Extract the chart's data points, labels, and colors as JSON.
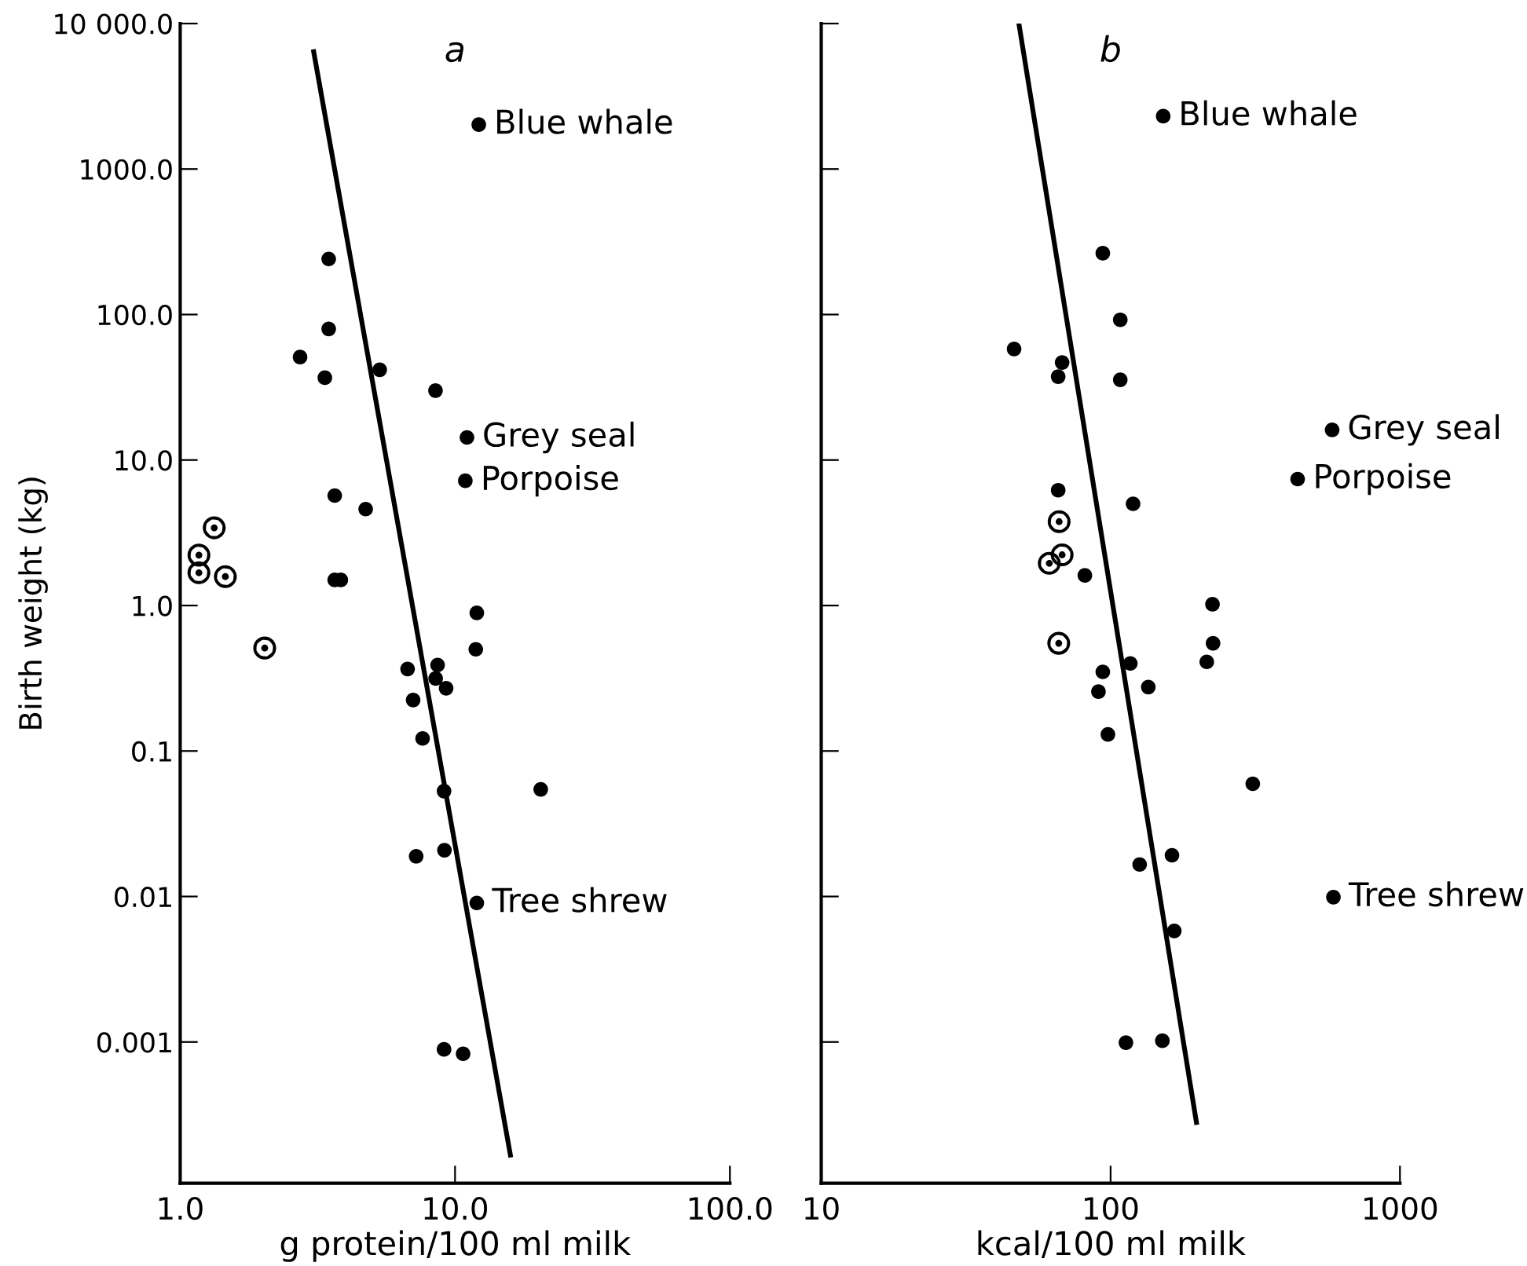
{
  "chart_data": [
    {
      "type": "scatter",
      "title": "a",
      "xlabel": "g protein/100 ml milk",
      "ylabel": "Birth weight (kg)",
      "log": "xy",
      "grid": false,
      "xlim": [
        1,
        100
      ],
      "xticks": [
        {
          "value": 1,
          "label": "1.0"
        },
        {
          "value": 10,
          "label": "10.0"
        },
        {
          "value": 100,
          "label": "100.0"
        }
      ],
      "ylim": [
        0.000107,
        10000
      ],
      "yticks": [
        {
          "value": 10000,
          "label": "10 000.0"
        },
        {
          "value": 1000,
          "label": "1000.0"
        },
        {
          "value": 100,
          "label": "100.0"
        },
        {
          "value": 10,
          "label": "10.0"
        },
        {
          "value": 1,
          "label": "1.0"
        },
        {
          "value": 0.1,
          "label": "0.1"
        },
        {
          "value": 0.01,
          "label": "0.01"
        },
        {
          "value": 0.001,
          "label": "0.001"
        }
      ],
      "series": [
        {
          "type": "scatter",
          "marker": "circle",
          "color": "#000000",
          "x": [
            12.2,
            3.47,
            3.47,
            2.73,
            3.36,
            5.32,
            8.49,
            11.05,
            10.9,
            3.65,
            4.73,
            3.65,
            3.84,
            12.0,
            11.9,
            6.72,
            8.64,
            8.5,
            9.28,
            7.04,
            7.62,
            9.12,
            20.5,
            9.15,
            7.22,
            12.0,
            9.12,
            10.7
          ],
          "values": [
            2020,
            241,
            79.6,
            51,
            36.8,
            41.7,
            30,
            14.3,
            7.2,
            5.7,
            4.6,
            1.5,
            1.5,
            0.89,
            0.5,
            0.366,
            0.39,
            0.315,
            0.27,
            0.224,
            0.122,
            0.053,
            0.0545,
            0.0208,
            0.0189,
            0.00903,
            0.00089,
            0.00083
          ]
        },
        {
          "type": "scatter",
          "marker": "dot-circle",
          "color": "#000000",
          "x": [
            1.33,
            1.17,
            1.17,
            1.46,
            2.03
          ],
          "values": [
            3.42,
            2.22,
            1.68,
            1.58,
            0.51
          ]
        },
        {
          "type": "line",
          "color": "#000000",
          "x": [
            3.06,
            15.9
          ],
          "values": [
            6400,
            0.000167
          ]
        }
      ],
      "annotations": [
        {
          "text": "Blue whale",
          "x": 12.2,
          "y": 2020
        },
        {
          "text": "Grey seal",
          "x": 11.05,
          "y": 14.3
        },
        {
          "text": "Porpoise",
          "x": 10.9,
          "y": 7.2
        },
        {
          "text": "Tree shrew",
          "x": 12.0,
          "y": 0.00903
        }
      ]
    },
    {
      "type": "scatter",
      "title": "b",
      "xlabel": "kcal/100 ml milk",
      "log": "xy",
      "grid": false,
      "tick_labels": "x",
      "xlim": [
        10,
        1000
      ],
      "xticks": [
        10,
        100,
        1000
      ],
      "ylim": [
        0.000107,
        10000
      ],
      "yticks": [
        {
          "value": 10000,
          "label": null
        },
        {
          "value": 1000,
          "label": null
        },
        {
          "value": 100,
          "label": null
        },
        {
          "value": 10,
          "label": null
        },
        {
          "value": 1,
          "label": null
        },
        {
          "value": 0.1,
          "label": null
        },
        {
          "value": 0.01,
          "label": null
        },
        {
          "value": 0.001,
          "label": null
        }
      ],
      "series": [
        {
          "type": "scatter",
          "marker": "circle",
          "color": "#000000",
          "x": [
            152,
            94,
            108,
            46.4,
            68,
            65.9,
            108,
            583,
            443,
            65.9,
            119.6,
            81.5,
            225,
            226,
            215,
            117,
            94,
            135,
            90.8,
            97.9,
            310,
            163,
            126,
            589,
            166,
            113,
            151
          ],
          "values": [
            2310,
            264,
            92,
            58,
            46.8,
            37.4,
            35.6,
            16.1,
            7.4,
            6.2,
            5.0,
            1.61,
            1.02,
            0.55,
            0.41,
            0.4,
            0.35,
            0.275,
            0.256,
            0.13,
            0.0595,
            0.0192,
            0.0166,
            0.0099,
            0.0058,
            0.00099,
            0.00102
          ]
        },
        {
          "type": "scatter",
          "marker": "dot-circle",
          "color": "#000000",
          "x": [
            66.4,
            68,
            61.4,
            66.2
          ],
          "values": [
            3.77,
            2.23,
            1.95,
            0.55
          ]
        },
        {
          "type": "line",
          "color": "#000000",
          "x": [
            48.2,
            198
          ],
          "values": [
            10000,
            0.00028
          ]
        }
      ],
      "annotations": [
        {
          "text": "Blue whale",
          "x": 152,
          "y": 2310
        },
        {
          "text": "Grey seal",
          "x": 583,
          "y": 16.1
        },
        {
          "text": "Porpoise",
          "x": 443,
          "y": 7.4
        },
        {
          "text": "Tree shrew",
          "x": 589,
          "y": 0.0099
        }
      ]
    }
  ]
}
